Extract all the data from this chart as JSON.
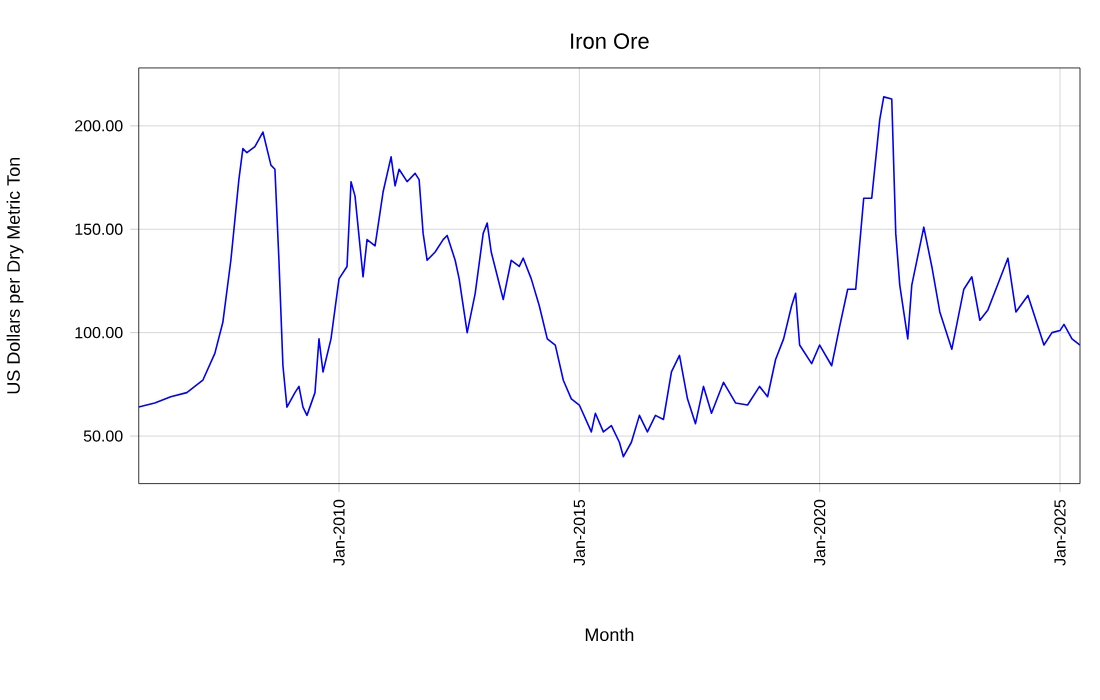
{
  "chart_data": {
    "type": "line",
    "title": "Iron Ore",
    "xlabel": "Month",
    "ylabel": "US Dollars per Dry Metric Ton",
    "x": [
      "2005-11",
      "2006-03",
      "2006-07",
      "2006-11",
      "2007-03",
      "2007-06",
      "2007-08",
      "2007-10",
      "2007-12",
      "2008-01",
      "2008-02",
      "2008-04",
      "2008-06",
      "2008-08",
      "2008-09",
      "2008-10",
      "2008-11",
      "2008-12",
      "2009-02",
      "2009-03",
      "2009-04",
      "2009-05",
      "2009-07",
      "2009-08",
      "2009-09",
      "2009-11",
      "2010-01",
      "2010-03",
      "2010-04",
      "2010-05",
      "2010-07",
      "2010-08",
      "2010-10",
      "2010-12",
      "2011-02",
      "2011-03",
      "2011-04",
      "2011-06",
      "2011-08",
      "2011-09",
      "2011-10",
      "2011-11",
      "2012-01",
      "2012-03",
      "2012-04",
      "2012-06",
      "2012-07",
      "2012-09",
      "2012-11",
      "2013-01",
      "2013-02",
      "2013-03",
      "2013-06",
      "2013-08",
      "2013-10",
      "2013-11",
      "2014-01",
      "2014-03",
      "2014-05",
      "2014-07",
      "2014-09",
      "2014-11",
      "2015-01",
      "2015-04",
      "2015-05",
      "2015-07",
      "2015-09",
      "2015-11",
      "2015-12",
      "2016-02",
      "2016-04",
      "2016-06",
      "2016-08",
      "2016-10",
      "2016-12",
      "2017-02",
      "2017-04",
      "2017-06",
      "2017-08",
      "2017-10",
      "2018-01",
      "2018-04",
      "2018-07",
      "2018-10",
      "2018-12",
      "2019-02",
      "2019-04",
      "2019-06",
      "2019-07",
      "2019-08",
      "2019-11",
      "2020-01",
      "2020-04",
      "2020-06",
      "2020-08",
      "2020-10",
      "2020-12",
      "2021-02",
      "2021-04",
      "2021-05",
      "2021-07",
      "2021-08",
      "2021-09",
      "2021-11",
      "2021-12",
      "2022-03",
      "2022-05",
      "2022-07",
      "2022-10",
      "2023-01",
      "2023-03",
      "2023-05",
      "2023-07",
      "2023-09",
      "2023-12",
      "2024-02",
      "2024-05",
      "2024-07",
      "2024-09",
      "2024-11",
      "2025-01",
      "2025-02",
      "2025-04",
      "2025-06"
    ],
    "series": [
      {
        "color": "#0000ff",
        "values": [
          64,
          66,
          69,
          71,
          77,
          90,
          105,
          135,
          174,
          189,
          187,
          190,
          197,
          181,
          179,
          135,
          84,
          64,
          71,
          74,
          64,
          60,
          71,
          97,
          81,
          97,
          126,
          132,
          173,
          166,
          127,
          145,
          142,
          168,
          185,
          171,
          179,
          173,
          177,
          174,
          148,
          135,
          139,
          145,
          147,
          135,
          126,
          100,
          119,
          148,
          153,
          139,
          116,
          135,
          132,
          136,
          126,
          113,
          97,
          94,
          77,
          68,
          65,
          52,
          61,
          52,
          55,
          47,
          40,
          47,
          60,
          52,
          60,
          58,
          81,
          89,
          68,
          56,
          74,
          61,
          76,
          66,
          65,
          74,
          69,
          87,
          97,
          113,
          119,
          94,
          85,
          94,
          84,
          103,
          121,
          121,
          165,
          165,
          203,
          214,
          213,
          148,
          123,
          97,
          123,
          151,
          132,
          110,
          92,
          121,
          127,
          106,
          111,
          121,
          136,
          110,
          118,
          106,
          94,
          100,
          101,
          104,
          97,
          94
        ]
      }
    ],
    "xlim": [
      "2005-11",
      "2025-06"
    ],
    "xticks": [
      {
        "value": "2010-01",
        "label": "Jan-2010"
      },
      {
        "value": "2015-01",
        "label": "Jan-2015"
      },
      {
        "value": "2020-01",
        "label": "Jan-2020"
      },
      {
        "value": "2025-01",
        "label": "Jan-2025"
      }
    ],
    "ylim": [
      27,
      228
    ],
    "yticks": [
      {
        "value": 50,
        "label": "50.00"
      },
      {
        "value": 100,
        "label": "100.00"
      },
      {
        "value": 150,
        "label": "150.00"
      },
      {
        "value": 200,
        "label": "200.00"
      }
    ],
    "grid": true,
    "marker": "none",
    "line_style": "solid"
  }
}
